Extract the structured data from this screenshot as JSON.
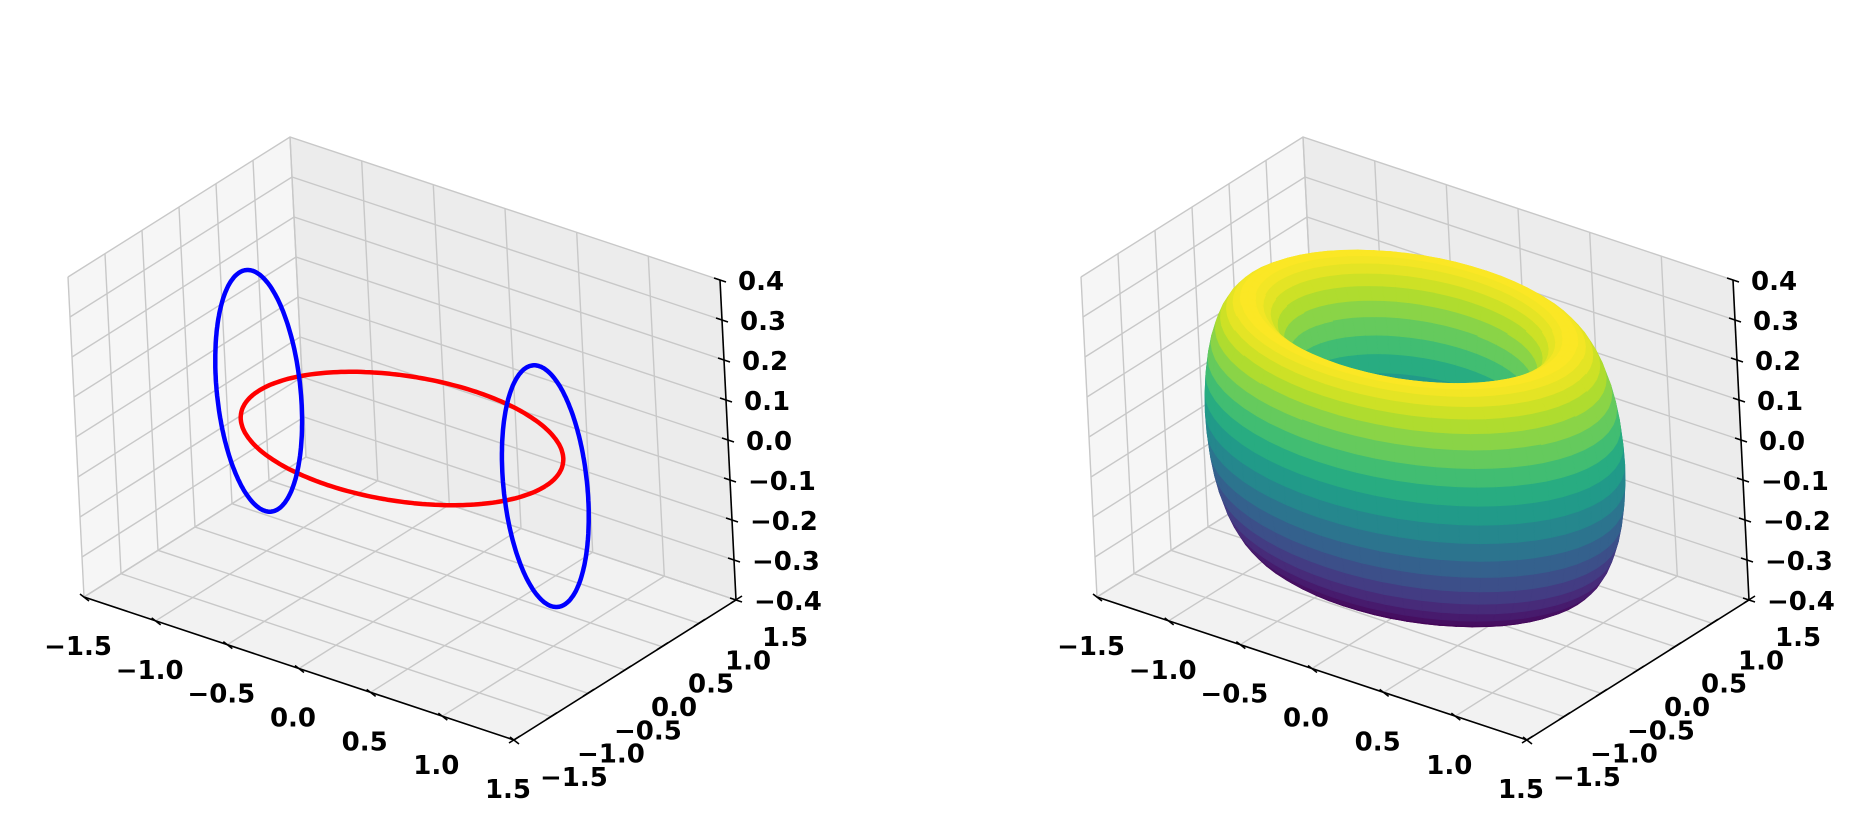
{
  "chart_data": [
    {
      "type": "line3d",
      "title": "",
      "xlabel": "",
      "ylabel": "",
      "zlabel": "",
      "xlim": [
        -1.5,
        1.5
      ],
      "ylim": [
        -1.5,
        1.5
      ],
      "zlim": [
        -0.4,
        0.4
      ],
      "xticks": [
        "−1.5",
        "−1.0",
        "−0.5",
        "0.0",
        "0.5",
        "1.0",
        "1.5"
      ],
      "yticks": [
        "−1.5",
        "−1.0",
        "−0.5",
        "0.0",
        "0.5",
        "1.0",
        "1.5"
      ],
      "zticks": [
        "−0.4",
        "−0.3",
        "−0.2",
        "−0.1",
        "0.0",
        "0.1",
        "0.2",
        "0.3",
        "0.4"
      ],
      "grid": true,
      "series": [
        {
          "kind": "circle-xy",
          "color": "#ff0000",
          "radius": 1.0,
          "z": 0.0
        },
        {
          "kind": "circle-xz",
          "color": "#0000ff",
          "center_x": -1.0,
          "radius": 0.3
        },
        {
          "kind": "circle-xz",
          "color": "#0000ff",
          "center_x": 1.0,
          "radius": 0.3
        }
      ]
    },
    {
      "type": "surface3d",
      "title": "",
      "xlabel": "",
      "ylabel": "",
      "zlabel": "",
      "xlim": [
        -1.5,
        1.5
      ],
      "ylim": [
        -1.5,
        1.5
      ],
      "zlim": [
        -0.4,
        0.4
      ],
      "xticks": [
        "−1.5",
        "−1.0",
        "−0.5",
        "0.0",
        "0.5",
        "1.0",
        "1.5"
      ],
      "yticks": [
        "−1.5",
        "−1.0",
        "−0.5",
        "0.0",
        "0.5",
        "1.0",
        "1.5"
      ],
      "zticks": [
        "−0.4",
        "−0.3",
        "−0.2",
        "−0.1",
        "0.0",
        "0.1",
        "0.2",
        "0.3",
        "0.4"
      ],
      "grid": true,
      "surface": {
        "kind": "torus",
        "major_radius": 1.0,
        "minor_radius": 0.3,
        "colormap": "viridis",
        "color_by": "z"
      }
    }
  ]
}
